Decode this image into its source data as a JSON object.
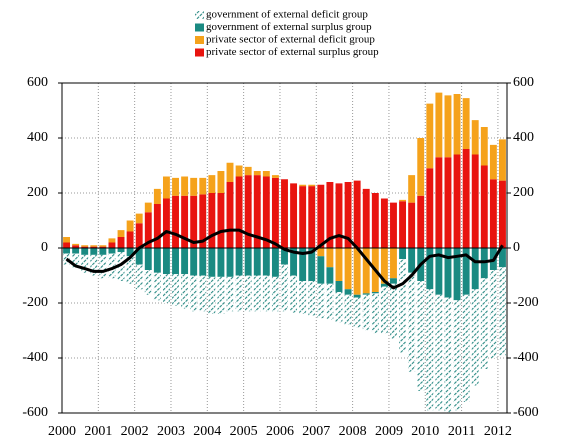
{
  "chart_data": {
    "type": "stacked_bar_line",
    "categories": [
      "2000",
      null,
      null,
      null,
      "2001",
      null,
      null,
      null,
      "2002",
      null,
      null,
      null,
      "2003",
      null,
      null,
      null,
      "2004",
      null,
      null,
      null,
      "2005",
      null,
      null,
      null,
      "2006",
      null,
      null,
      null,
      "2007",
      null,
      null,
      null,
      "2008",
      null,
      null,
      null,
      "2009",
      null,
      null,
      null,
      "2010",
      null,
      null,
      null,
      "2011",
      null,
      null,
      null,
      "2012"
    ],
    "series": [
      {
        "name": "government of external deficit group",
        "color": "#2a8a84",
        "pattern": "hatch",
        "values": [
          -40,
          -50,
          -65,
          -75,
          -85,
          -90,
          -105,
          -100,
          -90,
          -90,
          -100,
          -105,
          -115,
          -125,
          -130,
          -130,
          -135,
          -135,
          -125,
          -130,
          -130,
          -130,
          -130,
          -125,
          -170,
          -135,
          -120,
          -125,
          -125,
          -130,
          -110,
          -110,
          -110,
          -130,
          -145,
          -170,
          -200,
          -340,
          -360,
          -400,
          -440,
          -420,
          -420,
          -400,
          -390,
          -350,
          -330,
          -320,
          -320
        ]
      },
      {
        "name": "government of external surplus group",
        "color": "#1a8a82",
        "values": [
          -20,
          -20,
          -25,
          -25,
          -25,
          -20,
          -15,
          -30,
          -60,
          -80,
          -90,
          -95,
          -95,
          -95,
          -100,
          -100,
          -105,
          -105,
          -105,
          -100,
          -100,
          -100,
          -100,
          -105,
          -60,
          -100,
          -120,
          -120,
          -100,
          -60,
          -40,
          -20,
          -10,
          -5,
          -5,
          -10,
          -20,
          -40,
          -90,
          -120,
          -150,
          -170,
          -180,
          -190,
          -170,
          -150,
          -110,
          -80,
          -70
        ]
      },
      {
        "name": "private sector of external deficit group",
        "color": "#f5a21b",
        "values": [
          20,
          5,
          5,
          5,
          5,
          15,
          25,
          40,
          35,
          35,
          55,
          80,
          65,
          70,
          65,
          60,
          65,
          80,
          70,
          40,
          30,
          15,
          20,
          10,
          0,
          0,
          5,
          5,
          -30,
          -70,
          -120,
          -150,
          -170,
          -165,
          -160,
          -130,
          -110,
          5,
          100,
          210,
          235,
          235,
          225,
          220,
          185,
          125,
          140,
          125,
          150
        ]
      },
      {
        "name": "private sector of external surplus group",
        "color": "#e8140f",
        "values": [
          20,
          10,
          5,
          5,
          5,
          20,
          40,
          60,
          90,
          130,
          160,
          180,
          190,
          190,
          190,
          195,
          200,
          200,
          240,
          260,
          265,
          265,
          260,
          255,
          250,
          235,
          225,
          225,
          230,
          240,
          235,
          240,
          245,
          215,
          200,
          180,
          165,
          170,
          165,
          190,
          290,
          330,
          330,
          340,
          360,
          340,
          300,
          250,
          245
        ]
      },
      {
        "type": "line",
        "color": "#000000",
        "values": [
          -40,
          -65,
          -75,
          -85,
          -85,
          -75,
          -60,
          -35,
          0,
          20,
          35,
          60,
          50,
          35,
          20,
          25,
          45,
          60,
          65,
          65,
          50,
          40,
          30,
          15,
          -5,
          -15,
          -20,
          -15,
          10,
          35,
          45,
          35,
          0,
          -40,
          -80,
          -120,
          -145,
          -130,
          -100,
          -60,
          -30,
          -25,
          -35,
          -30,
          -25,
          -50,
          -50,
          -45,
          10
        ]
      }
    ],
    "ylim": [
      -600,
      600
    ],
    "yticks": [
      600,
      400,
      200,
      0,
      -200,
      -400,
      -600
    ],
    "y2lim": [
      -600,
      600
    ],
    "y2ticks": [
      600,
      400,
      200,
      0,
      -200,
      -400,
      -600
    ],
    "grid": true
  }
}
